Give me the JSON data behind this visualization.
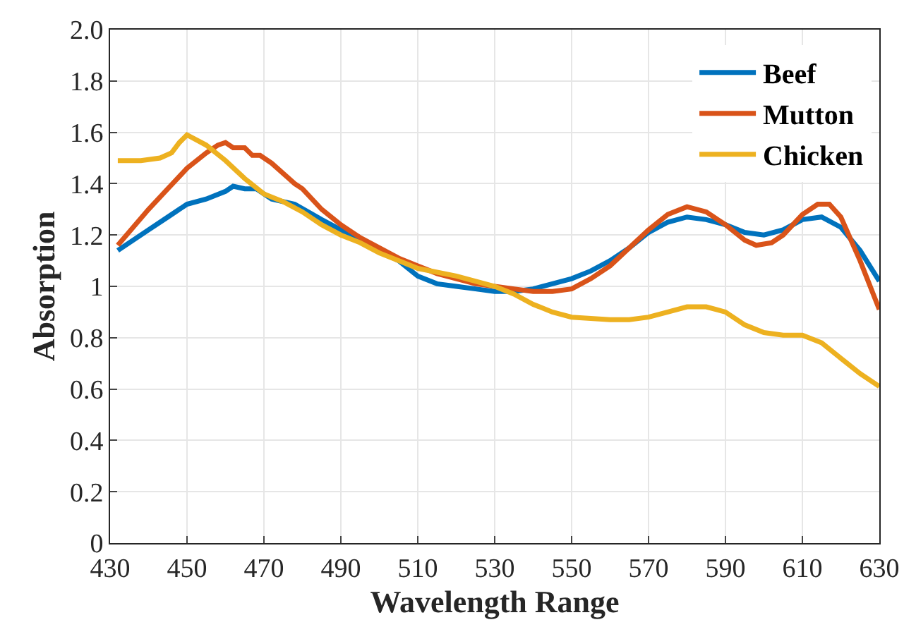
{
  "chart_data": {
    "type": "line",
    "xlabel": "Wavelength Range",
    "ylabel": "Absorption",
    "xlim": [
      430,
      630
    ],
    "xticks": [
      430,
      450,
      470,
      490,
      510,
      530,
      550,
      570,
      590,
      610,
      630
    ],
    "ylim": [
      0,
      2
    ],
    "yticks": [
      0,
      {
        "value": 0.2,
        "label": "0.2"
      },
      {
        "value": 0.4,
        "label": "0.4"
      },
      {
        "value": 0.6,
        "label": "0.6"
      },
      {
        "value": 0.8,
        "label": "0.8"
      },
      1,
      {
        "value": 1.2,
        "label": "1.2"
      },
      {
        "value": 1.4,
        "label": "1.4"
      },
      {
        "value": 1.6,
        "label": "1.6"
      },
      {
        "value": 1.8,
        "label": "1.8"
      },
      {
        "value": 2,
        "label": "2.0"
      }
    ],
    "grid": true,
    "legend": "top right",
    "marker": "none",
    "line_style": "solid",
    "series": [
      {
        "name": "Beef",
        "color": "#0072bd",
        "x": [
          432,
          440,
          445,
          450,
          455,
          460,
          462,
          465,
          468,
          472,
          478,
          485,
          490,
          495,
          500,
          505,
          510,
          515,
          520,
          525,
          530,
          535,
          540,
          545,
          550,
          555,
          560,
          565,
          570,
          575,
          580,
          585,
          590,
          595,
          600,
          605,
          610,
          615,
          620,
          625,
          630
        ],
        "values": [
          1.14,
          1.22,
          1.27,
          1.32,
          1.34,
          1.37,
          1.39,
          1.38,
          1.38,
          1.34,
          1.32,
          1.26,
          1.22,
          1.18,
          1.14,
          1.1,
          1.04,
          1.01,
          1.0,
          0.99,
          0.98,
          0.98,
          0.99,
          1.01,
          1.03,
          1.06,
          1.1,
          1.15,
          1.21,
          1.25,
          1.27,
          1.26,
          1.24,
          1.21,
          1.2,
          1.22,
          1.26,
          1.27,
          1.23,
          1.14,
          1.02
        ]
      },
      {
        "name": "Mutton",
        "color": "#d95319",
        "x": [
          432,
          440,
          445,
          450,
          455,
          458,
          460,
          462,
          465,
          467,
          469,
          472,
          475,
          478,
          480,
          485,
          490,
          495,
          500,
          505,
          510,
          515,
          520,
          525,
          530,
          535,
          540,
          545,
          550,
          555,
          560,
          565,
          570,
          575,
          580,
          585,
          590,
          595,
          598,
          602,
          605,
          610,
          614,
          617,
          620,
          625,
          630
        ],
        "values": [
          1.16,
          1.3,
          1.38,
          1.46,
          1.52,
          1.55,
          1.56,
          1.54,
          1.54,
          1.51,
          1.51,
          1.48,
          1.44,
          1.4,
          1.38,
          1.3,
          1.24,
          1.19,
          1.15,
          1.11,
          1.08,
          1.05,
          1.03,
          1.01,
          1.0,
          0.99,
          0.98,
          0.98,
          0.99,
          1.03,
          1.08,
          1.15,
          1.22,
          1.28,
          1.31,
          1.29,
          1.24,
          1.18,
          1.16,
          1.17,
          1.2,
          1.28,
          1.32,
          1.32,
          1.27,
          1.1,
          0.91
        ]
      },
      {
        "name": "Chicken",
        "color": "#edb120",
        "x": [
          432,
          438,
          443,
          446,
          448,
          450,
          455,
          460,
          465,
          470,
          475,
          480,
          485,
          490,
          495,
          500,
          505,
          510,
          520,
          530,
          535,
          540,
          545,
          550,
          560,
          565,
          570,
          575,
          580,
          585,
          590,
          595,
          600,
          605,
          610,
          615,
          620,
          625,
          630
        ],
        "values": [
          1.49,
          1.49,
          1.5,
          1.52,
          1.56,
          1.59,
          1.55,
          1.49,
          1.42,
          1.36,
          1.33,
          1.29,
          1.24,
          1.2,
          1.17,
          1.13,
          1.1,
          1.07,
          1.04,
          1.0,
          0.97,
          0.93,
          0.9,
          0.88,
          0.87,
          0.87,
          0.88,
          0.9,
          0.92,
          0.92,
          0.9,
          0.85,
          0.82,
          0.81,
          0.81,
          0.78,
          0.72,
          0.66,
          0.61
        ]
      }
    ]
  }
}
